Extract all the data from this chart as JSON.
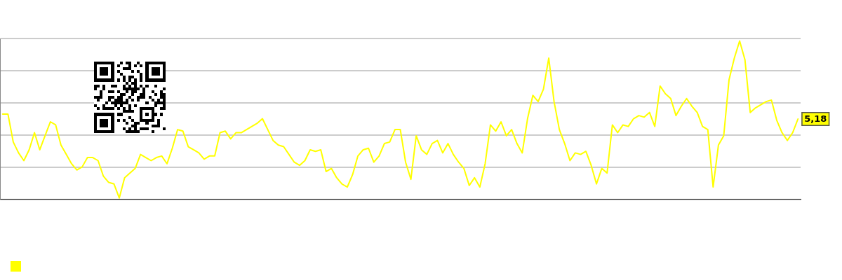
{
  "chart_data": {
    "type": "line",
    "grid": "y",
    "marker": "none",
    "ylim": [
      0,
      10.36
    ],
    "yticks": [
      {
        "value": 0,
        "label": null
      },
      {
        "value": 2.07,
        "label": null
      },
      {
        "value": 4.14,
        "label": null
      },
      {
        "value": 6.22,
        "label": null
      },
      {
        "value": 8.29,
        "label": null
      },
      {
        "value": 10.36,
        "label": null
      }
    ],
    "categories": [
      null,
      null,
      null,
      null,
      null,
      null,
      null,
      null,
      null,
      null,
      null,
      null,
      null,
      null,
      null,
      null,
      null,
      null,
      null,
      null,
      null,
      null,
      null,
      null,
      null,
      null,
      null,
      null,
      null,
      null,
      null,
      null,
      null,
      null,
      null,
      null,
      null,
      null,
      null,
      null,
      null,
      null,
      null,
      null,
      null,
      null,
      null,
      null,
      null,
      null,
      null,
      null,
      null,
      null,
      null,
      null,
      null,
      null,
      null,
      null,
      null,
      null,
      null,
      null,
      null,
      null,
      null,
      null,
      null,
      null,
      null,
      null,
      null,
      null,
      null,
      null,
      null,
      null,
      null,
      null,
      null,
      null,
      null,
      null,
      null,
      null,
      null,
      null,
      null,
      null,
      null,
      null,
      null,
      null,
      null,
      null,
      null,
      null,
      null,
      null,
      null,
      null,
      null,
      null,
      null,
      null,
      null,
      null,
      null,
      null,
      null,
      null,
      null,
      null,
      null,
      null,
      null,
      null,
      null,
      null,
      null,
      null,
      null,
      null,
      null,
      null,
      null,
      null,
      null,
      null,
      null,
      null,
      null,
      null,
      null,
      null,
      null,
      null,
      null,
      null,
      null,
      null,
      null,
      null,
      null,
      null,
      null,
      null,
      null,
      null,
      null
    ],
    "series": [
      {
        "color": "#ffff00",
        "values": [
          5.5,
          5.5,
          3.7,
          3.0,
          2.5,
          3.2,
          4.3,
          3.2,
          4.1,
          5.0,
          4.8,
          3.5,
          2.9,
          2.3,
          1.9,
          2.1,
          2.7,
          2.7,
          2.5,
          1.5,
          1.1,
          1.0,
          0.1,
          1.4,
          1.7,
          2.0,
          2.9,
          2.7,
          2.5,
          2.7,
          2.8,
          2.3,
          3.3,
          4.5,
          4.4,
          3.4,
          3.2,
          3.0,
          2.6,
          2.8,
          2.8,
          4.3,
          4.4,
          3.9,
          4.3,
          4.3,
          4.5,
          4.7,
          4.9,
          5.2,
          4.5,
          3.8,
          3.5,
          3.4,
          2.9,
          2.4,
          2.2,
          2.5,
          3.2,
          3.1,
          3.2,
          1.8,
          2.0,
          1.4,
          1.0,
          0.8,
          1.6,
          2.8,
          3.2,
          3.3,
          2.4,
          2.8,
          3.6,
          3.7,
          4.5,
          4.5,
          2.4,
          1.3,
          4.1,
          3.2,
          2.9,
          3.6,
          3.8,
          3.0,
          3.6,
          2.9,
          2.4,
          2.0,
          0.9,
          1.4,
          0.8,
          2.3,
          4.8,
          4.4,
          5.0,
          4.1,
          4.5,
          3.6,
          3.0,
          5.2,
          6.7,
          6.3,
          7.1,
          9.1,
          6.3,
          4.5,
          3.6,
          2.5,
          3.0,
          2.9,
          3.1,
          2.2,
          1.0,
          2.0,
          1.7,
          4.8,
          4.3,
          4.8,
          4.7,
          5.2,
          5.4,
          5.3,
          5.6,
          4.7,
          7.3,
          6.8,
          6.5,
          5.4,
          6.0,
          6.5,
          6.0,
          5.6,
          4.7,
          4.5,
          0.8,
          3.5,
          4.1,
          7.7,
          9.1,
          10.2,
          9.0,
          5.6,
          5.9,
          6.1,
          6.3,
          6.4,
          5.1,
          4.3,
          3.8,
          4.3,
          5.18
        ],
        "value_labels": [
          null,
          null,
          null,
          null,
          null,
          null,
          null,
          null,
          null,
          null,
          null,
          null,
          null,
          null,
          null,
          null,
          null,
          null,
          null,
          null,
          null,
          null,
          null,
          null,
          null,
          null,
          null,
          null,
          null,
          null,
          null,
          null,
          null,
          null,
          null,
          null,
          null,
          null,
          null,
          null,
          null,
          null,
          null,
          null,
          null,
          null,
          null,
          null,
          null,
          null,
          null,
          null,
          null,
          null,
          null,
          null,
          null,
          null,
          null,
          null,
          null,
          null,
          null,
          null,
          null,
          null,
          null,
          null,
          null,
          null,
          null,
          null,
          null,
          null,
          null,
          null,
          null,
          null,
          null,
          null,
          null,
          null,
          null,
          null,
          null,
          null,
          null,
          null,
          null,
          null,
          null,
          null,
          null,
          null,
          null,
          null,
          null,
          null,
          null,
          null,
          null,
          null,
          null,
          null,
          null,
          null,
          null,
          null,
          null,
          null,
          null,
          null,
          null,
          null,
          null,
          null,
          null,
          null,
          null,
          null,
          null,
          null,
          null,
          null,
          null,
          null,
          null,
          null,
          null,
          null,
          null,
          null,
          null,
          null,
          null,
          null,
          null,
          null,
          null,
          null,
          null,
          null,
          null,
          null,
          null,
          null,
          null,
          null,
          null,
          null,
          "5,18"
        ]
      }
    ]
  }
}
